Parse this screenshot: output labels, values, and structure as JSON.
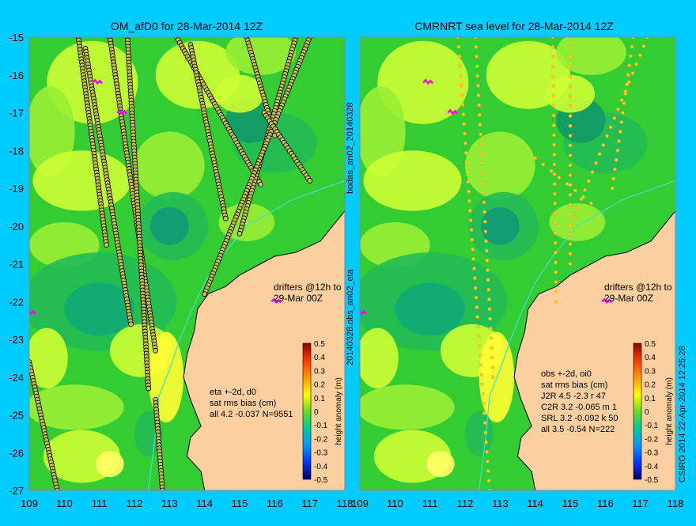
{
  "background_color": "#00ccff",
  "land_color": "#fccfa0",
  "ocean_base_color": "#33cc33",
  "left_panel": {
    "title": "OM_afD0 for 28-Mar-2014 12Z",
    "drifter_note": [
      "drifters @12h to",
      "29-Mar 00Z"
    ],
    "stats": [
      "eta +-2d, d0",
      "sat rms bias (cm)",
      "all 4.2 -0.037 N=9551"
    ]
  },
  "right_panel": {
    "title": "CMRNRT sea level  for 28-Mar-2014 12Z",
    "drifter_note": [
      "drifters @12h to",
      "29-Mar 00Z"
    ],
    "stats": [
      "obs +-2d, oi0",
      "sat rms bias (cm)",
      "J2R  4.5 -2.3 r 47",
      "C2R  3.2 -0.065 m 1",
      "SRL  3.2 -0.092 k 50",
      "all  3.5 -0.54 N=222"
    ]
  },
  "y_axis_labels": [
    "-15",
    "-16",
    "-17",
    "-18",
    "-19",
    "-20",
    "-21",
    "-22",
    "-23",
    "-24",
    "-25",
    "-26",
    "-27"
  ],
  "x_axis_labels": [
    "109",
    "110",
    "111",
    "112",
    "113",
    "114",
    "115",
    "116",
    "117",
    "118"
  ],
  "colorbar": {
    "label": "height anomaly (m)",
    "ticks": [
      "0.5",
      "0.4",
      "0.3",
      "0.2",
      "0.1",
      "0",
      "-0.1",
      "-0.2",
      "-0.3",
      "-0.4",
      "-0.5"
    ]
  },
  "divider_text": {
    "top": "bodas_an02_20140328",
    "bottom": "20140328.obs_an02_eta"
  },
  "credit": "CSIRO 2014   22-Apr-2014 12:25:28"
}
